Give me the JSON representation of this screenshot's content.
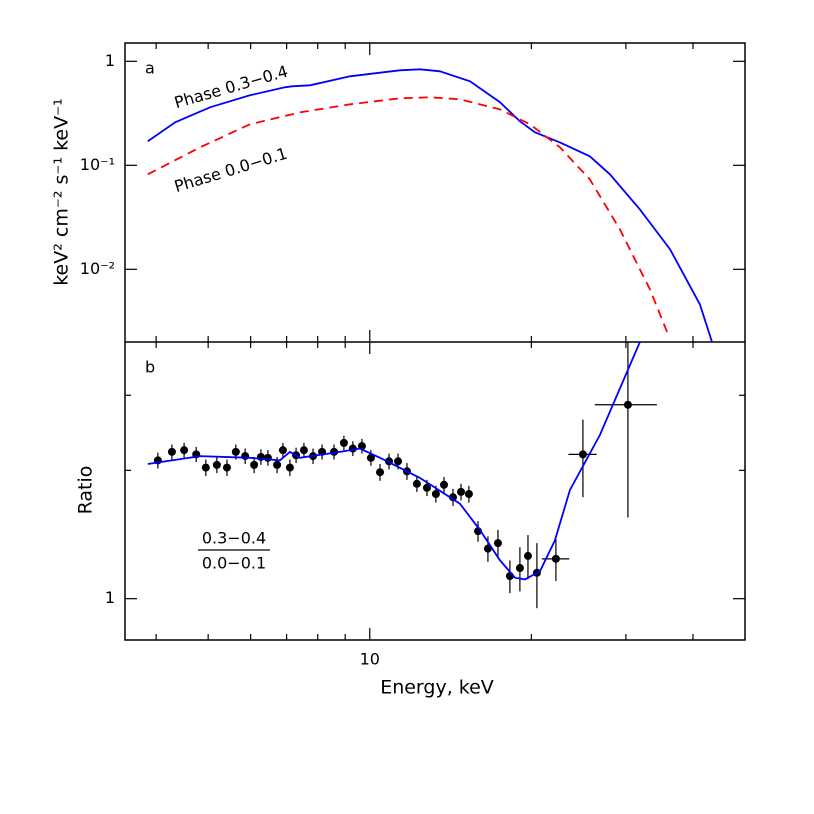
{
  "chart_data": [
    {
      "type": "line",
      "panel_label": "a",
      "ylabel": "keV² cm⁻² s⁻¹ keV⁻¹",
      "xscale": "log",
      "yscale": "log",
      "xlim": [
        3.5,
        50
      ],
      "xticks": [
        10
      ],
      "xtick_labels": false,
      "xminorticks": [
        4,
        5,
        6,
        7,
        8,
        9,
        20,
        30,
        40
      ],
      "ylim": [
        0.002,
        1.5
      ],
      "yticks": [
        1,
        {
          "value": 0.1,
          "label": "10⁻¹"
        },
        {
          "value": 0.01,
          "label": "10⁻²"
        }
      ],
      "series": [
        {
          "name": "Phase 0.3−0.4",
          "color": "#0000ff",
          "dash": false,
          "x": [
            3.86,
            4.34,
            5.04,
            5.98,
            6.95,
            7.16,
            7.74,
            9.19,
            11.38,
            12.4,
            13.51,
            15.37,
            17.48,
            19.04,
            20.3,
            22.6,
            25.7,
            28.01,
            31.86,
            36.24,
            41.2,
            43.37
          ],
          "values": [
            0.17,
            0.259,
            0.361,
            0.471,
            0.562,
            0.575,
            0.588,
            0.717,
            0.819,
            0.838,
            0.801,
            0.642,
            0.404,
            0.265,
            0.208,
            0.166,
            0.122,
            0.0819,
            0.0377,
            0.0156,
            0.0046,
            0.00203
          ]
        },
        {
          "name": "Phase 0.0−0.1",
          "color": "#ff0000",
          "dash": true,
          "x": [
            3.86,
            4.83,
            5.98,
            7.41,
            9.19,
            11.38,
            12.94,
            14.72,
            17.48,
            19.88,
            22.6,
            25.7,
            29.23,
            33.25,
            35.93
          ],
          "values": [
            0.0819,
            0.149,
            0.248,
            0.323,
            0.386,
            0.441,
            0.451,
            0.431,
            0.345,
            0.248,
            0.149,
            0.0733,
            0.0243,
            0.00643,
            0.00237
          ]
        }
      ]
    },
    {
      "type": "errorbar",
      "panel_label": "b",
      "xlabel": "Energy, keV",
      "ylabel": "Ratio",
      "xscale": "log",
      "yscale": "log",
      "xlim": [
        3.5,
        50
      ],
      "xticks": [
        10
      ],
      "xtick_labels": true,
      "xminorticks": [
        4,
        5,
        6,
        7,
        8,
        9,
        20,
        30,
        40
      ],
      "ylim": [
        0.8,
        4
      ],
      "yticks": [
        1
      ],
      "yminorticks": [
        2,
        3
      ],
      "annotation": {
        "numerator": "0.3−0.4",
        "denominator": "0.0−0.1"
      },
      "series": [
        {
          "color": "#000000",
          "x": [
            4.03,
            4.28,
            4.51,
            4.75,
            4.95,
            5.19,
            5.42,
            5.63,
            5.86,
            6.09,
            6.27,
            6.46,
            6.72,
            6.89,
            7.1,
            7.29,
            7.54,
            7.84,
            8.15,
            8.58,
            8.95,
            9.3,
            9.67,
            10.05,
            10.45,
            10.86,
            11.29,
            11.73,
            12.24,
            12.78,
            13.28,
            13.75,
            14.29,
            14.79,
            15.3,
            15.91,
            16.6,
            17.33,
            18.24,
            19.04,
            19.71,
            20.48,
            22.22,
            24.95,
            30.26
          ],
          "xerr": [
            null,
            null,
            null,
            null,
            null,
            null,
            null,
            null,
            null,
            null,
            null,
            null,
            null,
            null,
            null,
            null,
            null,
            null,
            null,
            null,
            null,
            null,
            null,
            null,
            null,
            null,
            null,
            null,
            null,
            null,
            null,
            null,
            null,
            null,
            null,
            null,
            null,
            null,
            null,
            null,
            null,
            null,
            1.3,
            1.5,
            4
          ],
          "values": [
            2.11,
            2.21,
            2.23,
            2.18,
            2.03,
            2.06,
            2.03,
            2.21,
            2.16,
            2.06,
            2.15,
            2.14,
            2.06,
            2.23,
            2.03,
            2.17,
            2.23,
            2.16,
            2.21,
            2.21,
            2.32,
            2.25,
            2.28,
            2.14,
            1.98,
            2.1,
            2.1,
            1.99,
            1.86,
            1.82,
            1.76,
            1.85,
            1.73,
            1.78,
            1.76,
            1.44,
            1.31,
            1.35,
            1.13,
            1.18,
            1.26,
            1.15,
            1.24,
            2.18,
            2.85
          ],
          "yerr": [
            0.09,
            0.09,
            0.09,
            0.09,
            0.09,
            0.09,
            0.09,
            0.09,
            0.09,
            0.09,
            0.09,
            0.09,
            0.09,
            0.09,
            0.09,
            0.09,
            0.09,
            0.09,
            0.09,
            0.09,
            0.09,
            0.09,
            0.09,
            0.09,
            0.09,
            0.09,
            0.09,
            0.09,
            0.08,
            0.08,
            0.08,
            0.08,
            0.08,
            0.08,
            0.08,
            0.08,
            0.09,
            0.1,
            0.1,
            0.14,
            0.15,
            0.2,
            0.14,
            0.45,
            1.3
          ]
        },
        {
          "color": "#0000ff",
          "x": [
            3.86,
            4.83,
            5.98,
            6.8,
            7.1,
            7.41,
            8.8,
            9.59,
            10.45,
            12.4,
            14.72,
            16.04,
            17.48,
            18.64,
            19.45,
            20.75,
            22.12,
            23.6,
            26.83,
            31.86
          ],
          "values": [
            2.07,
            2.16,
            2.14,
            2.11,
            2.21,
            2.14,
            2.21,
            2.25,
            2.14,
            1.92,
            1.67,
            1.45,
            1.23,
            1.12,
            1.11,
            1.16,
            1.37,
            1.8,
            2.42,
            4.0
          ]
        }
      ]
    }
  ]
}
